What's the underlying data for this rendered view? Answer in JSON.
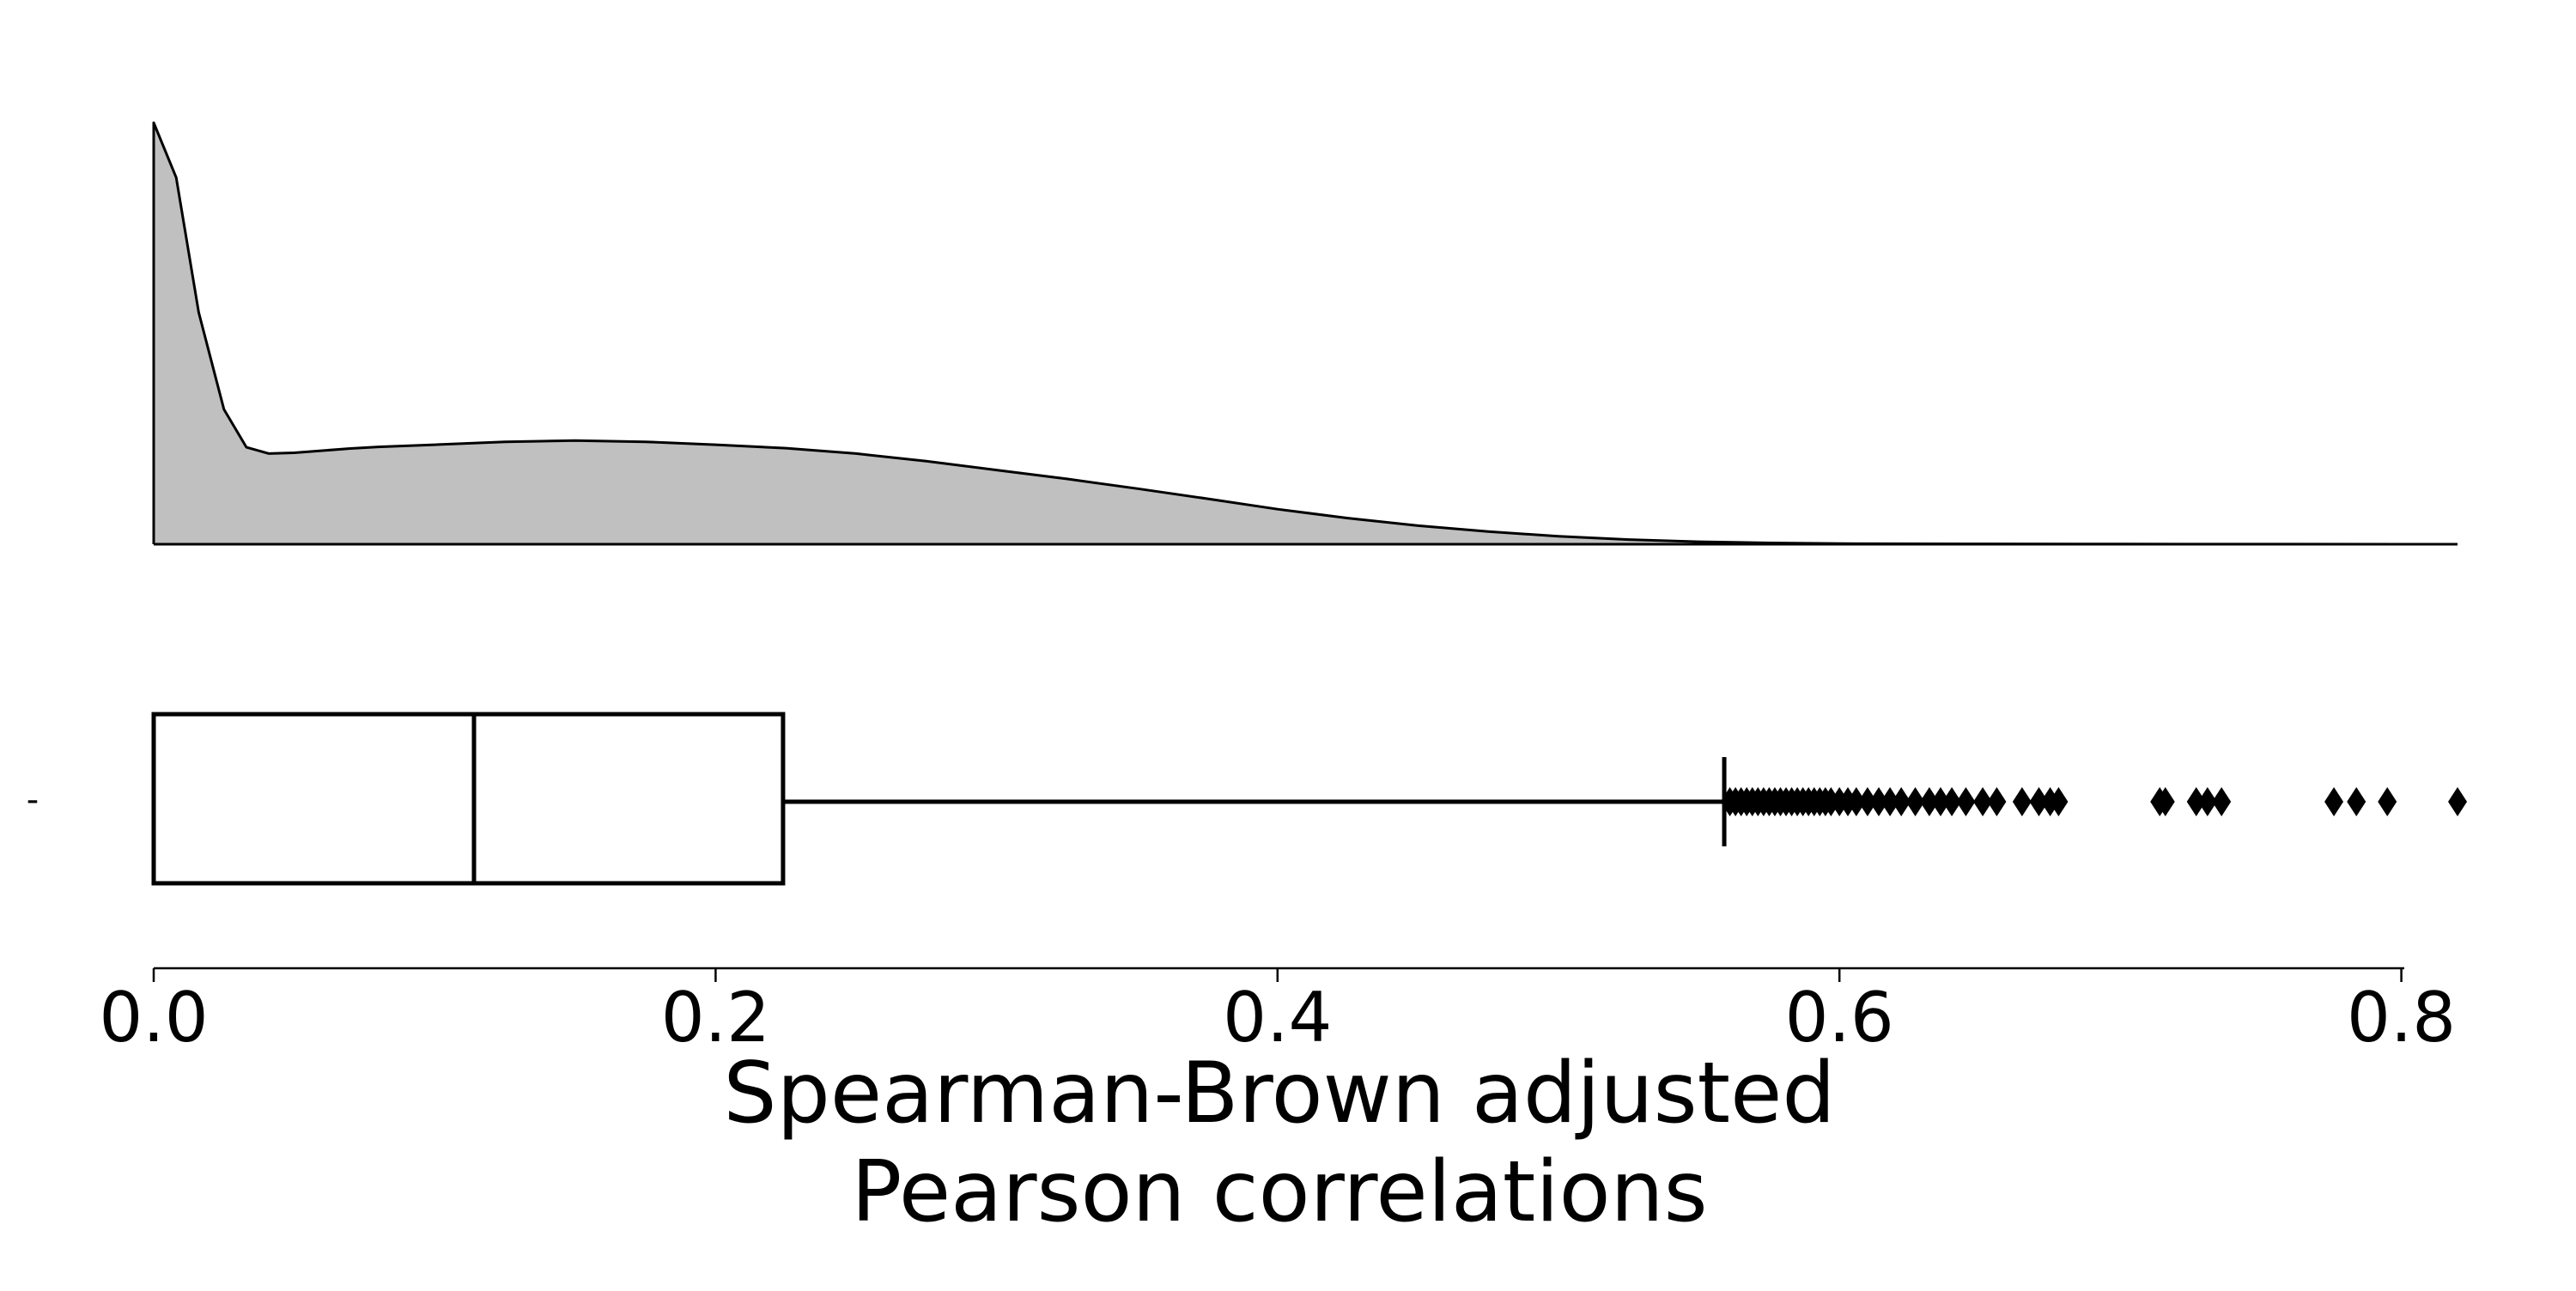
{
  "chart_data": {
    "type": "density_boxplot",
    "xlabel_lines": [
      "Spearman-Brown adjusted",
      "Pearson correlations"
    ],
    "xlim": [
      0.0,
      0.82
    ],
    "xticks": [
      0.0,
      0.2,
      0.4,
      0.6,
      0.8
    ],
    "xtick_labels": [
      "0.0",
      "0.2",
      "0.4",
      "0.6",
      "0.8"
    ],
    "y_category_label": "-",
    "grid": false,
    "density": {
      "fill_color": "#c0c0c0",
      "line_color": "#000000",
      "x": [
        0.0,
        0.008,
        0.016,
        0.025,
        0.033,
        0.041,
        0.05,
        0.06,
        0.07,
        0.08,
        0.1,
        0.125,
        0.15,
        0.175,
        0.2,
        0.225,
        0.25,
        0.275,
        0.3,
        0.325,
        0.35,
        0.375,
        0.4,
        0.425,
        0.45,
        0.475,
        0.5,
        0.525,
        0.55,
        0.575,
        0.6,
        0.65,
        0.7,
        0.75,
        0.8,
        0.82
      ],
      "y": [
        1.0,
        0.87,
        0.55,
        0.32,
        0.23,
        0.215,
        0.217,
        0.222,
        0.227,
        0.231,
        0.236,
        0.243,
        0.246,
        0.243,
        0.236,
        0.228,
        0.215,
        0.197,
        0.176,
        0.155,
        0.132,
        0.108,
        0.083,
        0.062,
        0.044,
        0.03,
        0.019,
        0.011,
        0.006,
        0.003,
        0.0015,
        0.0008,
        0.0004,
        0.0002,
        0.0001,
        0.0
      ]
    },
    "boxplot": {
      "q1": 0.0,
      "median": 0.114,
      "q3": 0.224,
      "whisker_low": 0.0,
      "whisker_high": 0.559,
      "outliers": [
        0.561,
        0.563,
        0.565,
        0.567,
        0.569,
        0.571,
        0.573,
        0.575,
        0.577,
        0.579,
        0.581,
        0.583,
        0.585,
        0.587,
        0.589,
        0.591,
        0.593,
        0.595,
        0.597,
        0.6,
        0.603,
        0.606,
        0.61,
        0.614,
        0.618,
        0.622,
        0.627,
        0.632,
        0.636,
        0.64,
        0.645,
        0.651,
        0.656,
        0.665,
        0.671,
        0.675,
        0.678,
        0.714,
        0.716,
        0.727,
        0.731,
        0.736,
        0.776,
        0.784,
        0.795,
        0.82
      ],
      "box_color": "#ffffff",
      "line_color": "#000000"
    }
  }
}
